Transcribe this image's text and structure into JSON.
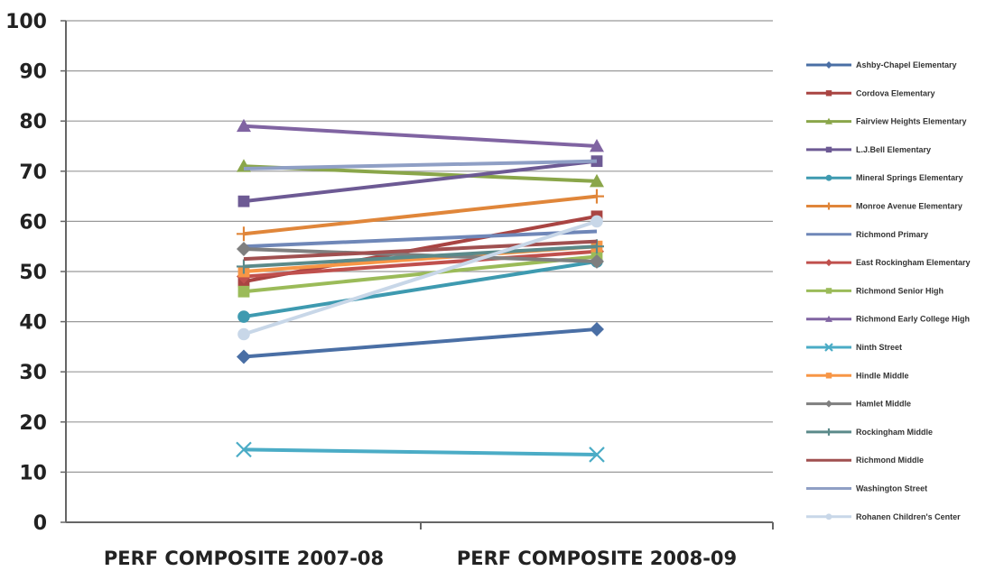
{
  "chart_data": {
    "type": "line",
    "categories": [
      "PERF COMPOSITE 2007-08",
      "PERF COMPOSITE 2008-09"
    ],
    "ylim": [
      0,
      100
    ],
    "yticks": [
      0,
      10,
      20,
      30,
      40,
      50,
      60,
      70,
      80,
      90,
      100
    ],
    "grid": true,
    "legend_position": "right",
    "series": [
      {
        "name": "Ashby-Chapel Elementary",
        "values": [
          33,
          38.5
        ],
        "color": "#4a6fa5",
        "marker": "diamond"
      },
      {
        "name": "Cordova Elementary",
        "values": [
          48,
          61
        ],
        "color": "#a94442",
        "marker": "square"
      },
      {
        "name": "Fairview Heights Elementary",
        "values": [
          71,
          68
        ],
        "color": "#8aa64a",
        "marker": "triangle"
      },
      {
        "name": "L.J.Bell Elementary",
        "values": [
          64,
          72
        ],
        "color": "#6d5a94",
        "marker": "square"
      },
      {
        "name": "Mineral Springs Elementary",
        "values": [
          41,
          52
        ],
        "color": "#3e9ab0",
        "marker": "circle"
      },
      {
        "name": "Monroe Avenue Elementary",
        "values": [
          57.5,
          65
        ],
        "color": "#e0863a",
        "marker": "plus"
      },
      {
        "name": "Richmond Primary",
        "values": [
          55,
          58
        ],
        "color": "#6f87b8",
        "marker": "none"
      },
      {
        "name": "East Rockingham Elementary",
        "values": [
          49,
          54
        ],
        "color": "#c0504d",
        "marker": "diamond"
      },
      {
        "name": "Richmond Senior High",
        "values": [
          46,
          53
        ],
        "color": "#9bbb59",
        "marker": "square"
      },
      {
        "name": "Richmond Early College High",
        "values": [
          79,
          75
        ],
        "color": "#8064a2",
        "marker": "triangle"
      },
      {
        "name": "Ninth Street",
        "values": [
          14.5,
          13.5
        ],
        "color": "#4bacc6",
        "marker": "x"
      },
      {
        "name": "Hindle Middle",
        "values": [
          50,
          55
        ],
        "color": "#f79646",
        "marker": "square"
      },
      {
        "name": "Hamlet Middle",
        "values": [
          54.5,
          52
        ],
        "color": "#7f7f7f",
        "marker": "diamond"
      },
      {
        "name": "Rockingham Middle",
        "values": [
          51,
          55
        ],
        "color": "#5b8a8a",
        "marker": "plus"
      },
      {
        "name": "Richmond Middle",
        "values": [
          52.5,
          56
        ],
        "color": "#a05050",
        "marker": "none"
      },
      {
        "name": "Washington Street",
        "values": [
          70.5,
          72
        ],
        "color": "#8f9fc5",
        "marker": "none"
      },
      {
        "name": "Rohanen Children's Center",
        "values": [
          37.5,
          60
        ],
        "color": "#c8d7e8",
        "marker": "circle"
      }
    ]
  }
}
